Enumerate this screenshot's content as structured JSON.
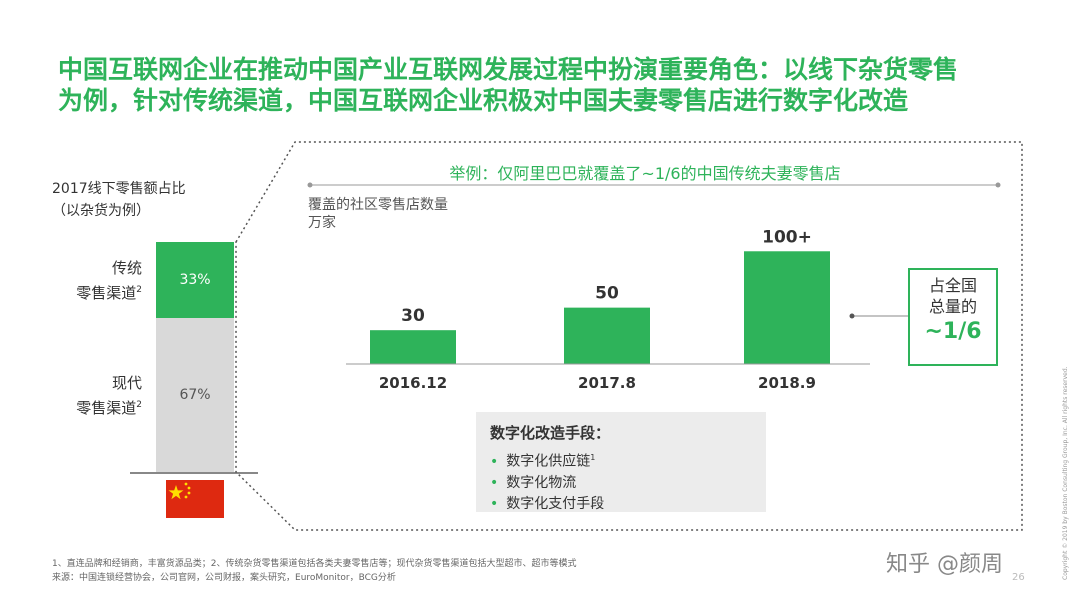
{
  "title": {
    "line1": "中国互联网企业在推动中国产业互联网发展过程中扮演重要角色：以线下杂货零售",
    "line2": "为例，针对传统渠道，中国互联网企业积极对中国夫妻零售店进行数字化改造"
  },
  "left_panel": {
    "title_line1": "2017线下零售额占比",
    "title_line2": "（以杂货为例）",
    "traditional": {
      "label_line1": "传统",
      "label_line2": "零售渠道",
      "sup": "2",
      "value_label": "33%",
      "share": 33
    },
    "modern": {
      "label_line1": "现代",
      "label_line2": "零售渠道",
      "sup": "2",
      "value_label": "67%",
      "share": 67
    },
    "flag_icon": "china-flag-icon"
  },
  "chart_data": {
    "type": "bar",
    "title": "举例：仅阿里巴巴就覆盖了~1/6的中国传统夫妻零售店",
    "ylabel_line1": "覆盖的社区零售店数量",
    "ylabel_line2": "万家",
    "categories": [
      "2016.12",
      "2017.8",
      "2018.9"
    ],
    "values": [
      30,
      50,
      100
    ],
    "value_labels": [
      "30",
      "50",
      "100+"
    ],
    "ylim": [
      0,
      110
    ],
    "color": "#2eb35a",
    "grid": false
  },
  "callout": {
    "line1": "占全国",
    "line2": "总量的",
    "value": "~1/6"
  },
  "means": {
    "heading": "数字化改造手段：",
    "items": [
      {
        "text": "数字化供应链",
        "sup": "1"
      },
      {
        "text": "数字化物流",
        "sup": ""
      },
      {
        "text": "数字化支付手段",
        "sup": ""
      }
    ]
  },
  "footer": {
    "line1": "1、直连品牌和经销商，丰富货源品类；2、传统杂货零售渠道包括各类夫妻零售店等；现代杂货零售渠道包括大型超市、超市等模式",
    "line2": "来源：中国连锁经营协会，公司官网，公司财报，案头研究，EuroMonitor，BCG分析"
  },
  "watermark": "知乎 @颜周",
  "page_number": "26",
  "copyright": "Copyright © 2019 by Boston Consulting Group, Inc. All rights reserved.",
  "colors": {
    "accent": "#2eb35a",
    "modern_gray": "#d9d9d9",
    "flag_red": "#de2910",
    "flag_star": "#ffde00"
  }
}
